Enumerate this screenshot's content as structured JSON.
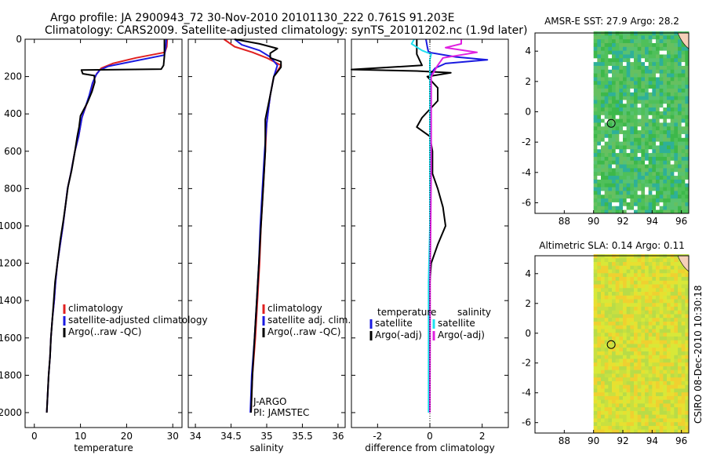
{
  "header": {
    "line1": "Argo profile: JA 2900943_72 30-Nov-2010 20101130_222 0.761S 91.203E",
    "line2": "Climatology: CARS2009. Satellite-adjusted climatology: synTS_20101202.nc (1.9d later)"
  },
  "side_stamp": "CSIRO 08-Dec-2010 10:30:18",
  "colors": {
    "climatology": "#e02020",
    "satellite": "#1a1ae0",
    "argo": "#000000",
    "sal_satellite": "#20e0f0",
    "sal_argo": "#e020e0"
  },
  "chart_data": [
    {
      "type": "line",
      "id": "temperature-profile",
      "xlabel": "temperature",
      "ylabel": "",
      "xlim": [
        -2,
        32
      ],
      "ylim": [
        2080,
        0
      ],
      "xticks": [
        0,
        10,
        20,
        30
      ],
      "yticks": [
        0,
        200,
        400,
        600,
        800,
        1000,
        1200,
        1400,
        1600,
        1800,
        2000
      ],
      "legend": {
        "position": "lower-right",
        "entries": [
          "climatology",
          "satellite-adjusted climatology",
          "Argo(..raw -QC)"
        ]
      },
      "series": [
        {
          "name": "climatology",
          "color": "#e02020",
          "points": [
            [
              28.8,
              0
            ],
            [
              28.7,
              40
            ],
            [
              28.3,
              70
            ],
            [
              22,
              100
            ],
            [
              17,
              130
            ],
            [
              14.5,
              155
            ],
            [
              13.5,
              185
            ],
            [
              12.7,
              230
            ],
            [
              12,
              300
            ],
            [
              10.3,
              420
            ],
            [
              9.6,
              520
            ],
            [
              8.8,
              600
            ],
            [
              7.9,
              720
            ],
            [
              7.2,
              800
            ],
            [
              6.7,
              900
            ],
            [
              6.2,
              1000
            ],
            [
              5.6,
              1100
            ],
            [
              5,
              1200
            ],
            [
              4.6,
              1300
            ],
            [
              4.3,
              1400
            ],
            [
              3.9,
              1500
            ],
            [
              3.6,
              1600
            ],
            [
              3.4,
              1700
            ],
            [
              3.1,
              1800
            ],
            [
              2.9,
              1900
            ],
            [
              2.7,
              2000
            ]
          ]
        },
        {
          "name": "satellite-adjusted climatology",
          "color": "#1a1ae0",
          "points": [
            [
              28.6,
              0
            ],
            [
              28.5,
              40
            ],
            [
              28.2,
              85
            ],
            [
              21,
              120
            ],
            [
              16,
              145
            ],
            [
              14.2,
              165
            ],
            [
              13.4,
              190
            ],
            [
              12.6,
              235
            ],
            [
              11.9,
              300
            ],
            [
              10.3,
              420
            ],
            [
              9.6,
              520
            ],
            [
              8.8,
              600
            ],
            [
              7.9,
              720
            ],
            [
              7.2,
              800
            ],
            [
              6.7,
              900
            ],
            [
              6.2,
              1000
            ],
            [
              5.6,
              1100
            ],
            [
              5,
              1200
            ],
            [
              4.6,
              1300
            ],
            [
              4.3,
              1400
            ],
            [
              3.9,
              1500
            ],
            [
              3.6,
              1600
            ],
            [
              3.4,
              1700
            ],
            [
              3.1,
              1800
            ],
            [
              2.9,
              1900
            ],
            [
              2.7,
              2000
            ]
          ]
        },
        {
          "name": "Argo(..raw -QC)",
          "color": "#000000",
          "points": [
            [
              28.2,
              0
            ],
            [
              28.2,
              90
            ],
            [
              28,
              140
            ],
            [
              27.5,
              160
            ],
            [
              10.2,
              165
            ],
            [
              10.5,
              185
            ],
            [
              13,
              195
            ],
            [
              13.1,
              230
            ],
            [
              12.5,
              280
            ],
            [
              11.5,
              340
            ],
            [
              10,
              410
            ],
            [
              9.7,
              470
            ],
            [
              9.3,
              520
            ],
            [
              8.8,
              600
            ],
            [
              8.1,
              700
            ],
            [
              7.3,
              790
            ],
            [
              6.8,
              880
            ],
            [
              6.3,
              970
            ],
            [
              5.6,
              1080
            ],
            [
              5,
              1200
            ],
            [
              4.5,
              1300
            ],
            [
              4.2,
              1400
            ],
            [
              3.9,
              1500
            ],
            [
              3.6,
              1600
            ],
            [
              3.4,
              1700
            ],
            [
              3.1,
              1800
            ],
            [
              2.9,
              1900
            ],
            [
              2.7,
              2000
            ]
          ]
        }
      ]
    },
    {
      "type": "line",
      "id": "salinity-profile",
      "xlabel": "salinity",
      "ylabel": "",
      "xlim": [
        33.9,
        36.1
      ],
      "ylim": [
        2080,
        0
      ],
      "xticks": [
        34,
        34.5,
        35,
        35.5,
        36
      ],
      "yticks": [
        0,
        200,
        400,
        600,
        800,
        1000,
        1200,
        1400,
        1600,
        1800,
        2000
      ],
      "legend": {
        "position": "lower-right",
        "entries": [
          "climatology",
          "satellite adj. clim.",
          "Argo(..raw -QC)"
        ]
      },
      "annotations": [
        "J-ARGO",
        "PI: JAMSTEC"
      ],
      "series": [
        {
          "name": "climatology",
          "color": "#e02020",
          "points": [
            [
              34.4,
              0
            ],
            [
              34.55,
              40
            ],
            [
              34.8,
              70
            ],
            [
              35,
              100
            ],
            [
              35.2,
              140
            ],
            [
              35.1,
              200
            ],
            [
              35.05,
              300
            ],
            [
              35,
              450
            ],
            [
              34.98,
              600
            ],
            [
              34.95,
              800
            ],
            [
              34.92,
              1000
            ],
            [
              34.9,
              1200
            ],
            [
              34.87,
              1400
            ],
            [
              34.84,
              1600
            ],
            [
              34.8,
              1800
            ],
            [
              34.78,
              2000
            ]
          ]
        },
        {
          "name": "satellite adj. clim.",
          "color": "#1a1ae0",
          "points": [
            [
              34.55,
              0
            ],
            [
              34.65,
              30
            ],
            [
              34.9,
              60
            ],
            [
              35.05,
              95
            ],
            [
              35.15,
              140
            ],
            [
              35.1,
              200
            ],
            [
              35.05,
              300
            ],
            [
              35,
              450
            ],
            [
              34.97,
              600
            ],
            [
              34.94,
              800
            ],
            [
              34.91,
              1000
            ],
            [
              34.89,
              1200
            ],
            [
              34.86,
              1400
            ],
            [
              34.83,
              1600
            ],
            [
              34.79,
              1800
            ],
            [
              34.77,
              2000
            ]
          ]
        },
        {
          "name": "Argo(..raw -QC)",
          "color": "#000000",
          "points": [
            [
              34.55,
              0
            ],
            [
              34.9,
              25
            ],
            [
              35.15,
              50
            ],
            [
              35.05,
              75
            ],
            [
              35.05,
              100
            ],
            [
              35.2,
              120
            ],
            [
              35.2,
              150
            ],
            [
              35.1,
              200
            ],
            [
              35.05,
              300
            ],
            [
              34.98,
              430
            ],
            [
              34.98,
              600
            ],
            [
              34.95,
              800
            ],
            [
              34.92,
              1000
            ],
            [
              34.89,
              1200
            ],
            [
              34.86,
              1400
            ],
            [
              34.83,
              1600
            ],
            [
              34.8,
              1800
            ],
            [
              34.78,
              2000
            ]
          ]
        }
      ]
    },
    {
      "type": "line",
      "id": "difference-profile",
      "xlabel": "difference from climatology",
      "ylabel": "",
      "xlim": [
        -3,
        3
      ],
      "ylim": [
        2080,
        0
      ],
      "xticks": [
        -2,
        0,
        2
      ],
      "yticks": [
        0,
        200,
        400,
        600,
        800,
        1000,
        1200,
        1400,
        1600,
        1800,
        2000
      ],
      "legend": {
        "position": "lower-right",
        "headers": [
          "temperature",
          "salinity"
        ],
        "entries": [
          "satellite",
          "Argo(-adj)",
          "satellite",
          "Argo(-adj)"
        ]
      },
      "series": [
        {
          "name": "temperature satellite",
          "color": "#1a1ae0",
          "points": [
            [
              -0.15,
              0
            ],
            [
              -0.1,
              40
            ],
            [
              -0.05,
              70
            ],
            [
              1,
              95
            ],
            [
              2.2,
              110
            ],
            [
              0.6,
              130
            ],
            [
              0.2,
              155
            ],
            [
              0.05,
              180
            ],
            [
              0,
              250
            ],
            [
              0,
              400
            ],
            [
              0,
              700
            ],
            [
              0,
              1000
            ],
            [
              0,
              1500
            ],
            [
              0,
              2000
            ]
          ]
        },
        {
          "name": "temperature Argo(-adj)",
          "color": "#000000",
          "points": [
            [
              -0.5,
              0
            ],
            [
              -0.5,
              80
            ],
            [
              -0.3,
              140
            ],
            [
              -3,
              162
            ],
            [
              -0.5,
              170
            ],
            [
              0.8,
              180
            ],
            [
              -0.1,
              200
            ],
            [
              0.3,
              260
            ],
            [
              0.3,
              330
            ],
            [
              -0.3,
              420
            ],
            [
              -0.5,
              470
            ],
            [
              0,
              520
            ],
            [
              0.1,
              600
            ],
            [
              0.1,
              720
            ],
            [
              0.3,
              800
            ],
            [
              0.5,
              900
            ],
            [
              0.6,
              1000
            ],
            [
              0.3,
              1100
            ],
            [
              0.05,
              1200
            ],
            [
              0,
              1300
            ],
            [
              0,
              1600
            ],
            [
              0,
              2000
            ]
          ]
        },
        {
          "name": "salinity satellite",
          "color": "#20e0f0",
          "points": [
            [
              -0.6,
              0
            ],
            [
              -0.7,
              25
            ],
            [
              -0.3,
              60
            ],
            [
              0.05,
              80
            ],
            [
              0,
              110
            ],
            [
              0,
              200
            ],
            [
              0,
              400
            ],
            [
              0,
              700
            ],
            [
              0,
              1000
            ],
            [
              -0.05,
              1300
            ],
            [
              -0.05,
              1600
            ],
            [
              -0.05,
              2000
            ]
          ]
        },
        {
          "name": "salinity Argo(-adj)",
          "color": "#e020e0",
          "points": [
            [
              1.2,
              0
            ],
            [
              1.2,
              25
            ],
            [
              0.6,
              45
            ],
            [
              1.8,
              70
            ],
            [
              0.5,
              100
            ],
            [
              0.3,
              140
            ],
            [
              0.05,
              200
            ],
            [
              0.05,
              400
            ],
            [
              0.05,
              700
            ],
            [
              0.03,
              1000
            ],
            [
              0.01,
              1300
            ],
            [
              0.01,
              1600
            ],
            [
              0,
              2000
            ]
          ]
        }
      ]
    },
    {
      "type": "heatmap",
      "id": "sst-map",
      "title": "AMSR-E SST: 27.9 Argo: 28.2",
      "xlim": [
        86,
        96.5
      ],
      "ylim": [
        -6.7,
        5.2
      ],
      "xticks": [
        88,
        90,
        92,
        94,
        96
      ],
      "yticks": [
        -6,
        -4,
        -2,
        0,
        2,
        4
      ],
      "data_lon_min": 90,
      "float_position": {
        "lon": 91.203,
        "lat": -0.761
      },
      "palette": [
        "#4fc05a",
        "#3db84a",
        "#66c060",
        "#2eb098",
        "#58c270"
      ]
    },
    {
      "type": "heatmap",
      "id": "sla-map",
      "title": "Altimetric SLA: 0.14 Argo: 0.11",
      "xlim": [
        86,
        96.5
      ],
      "ylim": [
        -6.7,
        5.2
      ],
      "xticks": [
        88,
        90,
        92,
        94,
        96
      ],
      "yticks": [
        -6,
        -4,
        -2,
        0,
        2,
        4
      ],
      "data_lon_min": 90,
      "float_position": {
        "lon": 91.203,
        "lat": -0.761
      },
      "palette": [
        "#c8e040",
        "#d8e838",
        "#e8e030",
        "#f0d030",
        "#b8dc48"
      ]
    }
  ]
}
